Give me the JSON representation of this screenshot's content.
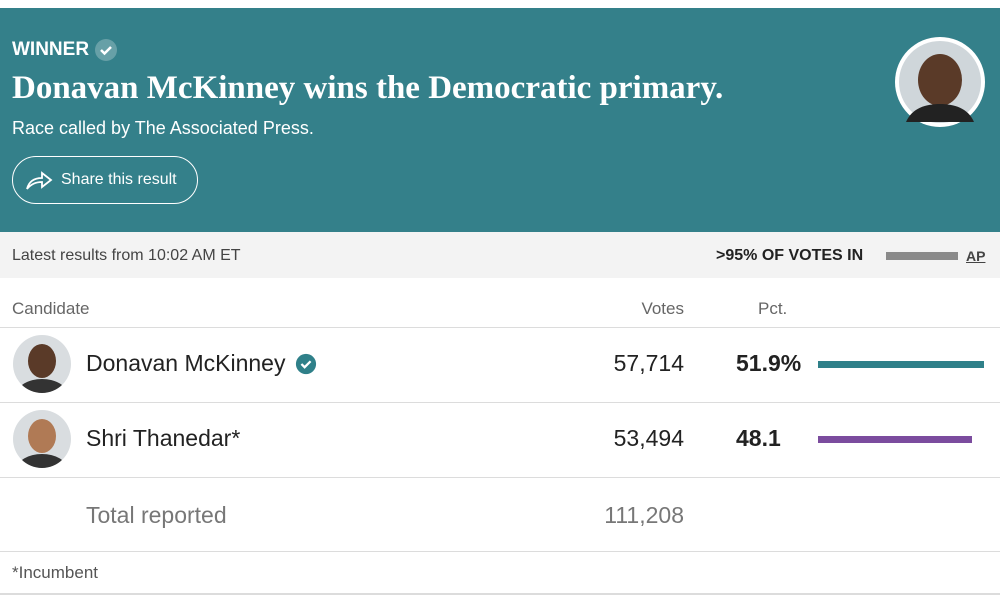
{
  "header": {
    "label": "WINNER",
    "title": "Donavan McKinney wins the Democratic primary.",
    "subtitle": "Race called by The Associated Press.",
    "share": "Share this result"
  },
  "status": {
    "updated": "Latest results from 10:02 AM ET",
    "reporting": ">95% OF VOTES IN",
    "source": "AP"
  },
  "table": {
    "columns": [
      "Candidate",
      "Votes",
      "Pct."
    ],
    "rows": [
      {
        "name": "Donavan McKinney",
        "votes": "57,714",
        "pct": 51.9,
        "pct_label": "51.9%",
        "color": "#2f8089",
        "winner": true
      },
      {
        "name": "Shri Thanedar*",
        "votes": "53,494",
        "pct": 48.1,
        "color": "#7b4c9e",
        "winner": false
      }
    ],
    "total": {
      "label": "Total reported",
      "votes": "111,208"
    }
  },
  "footnote": "*Incumbent"
}
